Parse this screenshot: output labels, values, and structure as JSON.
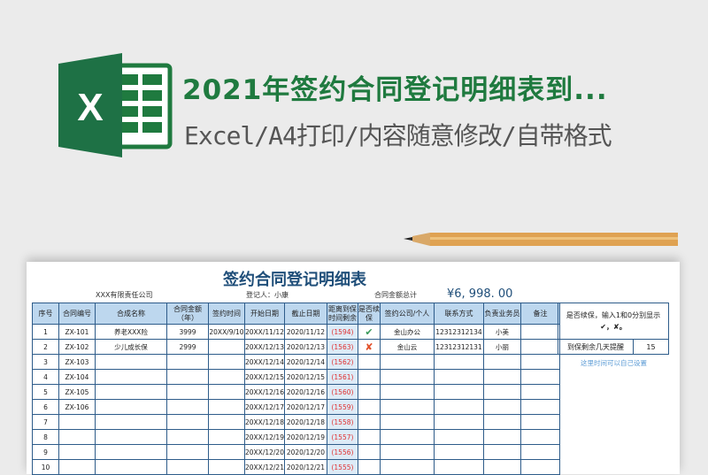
{
  "banner": {
    "title": "2021年签约合同登记明细表到...",
    "subtitle": "Excel/A4打印/内容随意修改/自带格式"
  },
  "sheet": {
    "title": "签约合同登记明细表",
    "company": "XXX有限责任公司",
    "registrar": "登记人：小康",
    "total_label": "合同金额总计",
    "total_value": "¥6, 998. 00",
    "headers": [
      "序号",
      "合同编号",
      "合成名称",
      "合同金额（年）",
      "签约时间",
      "开始日期",
      "截止日期",
      "距离到保时间剩余",
      "是否续保",
      "签约公司/个人",
      "联系方式",
      "负责业务员",
      "备注"
    ],
    "rows": [
      [
        "1",
        "ZX-101",
        "养老XXX险",
        "3999",
        "20XX/9/10",
        "20XX/11/12",
        "2020/11/12",
        "(1594)",
        "check",
        "金山办公",
        "12312312134",
        "小美",
        ""
      ],
      [
        "2",
        "ZX-102",
        "少儿成长保",
        "2999",
        "",
        "20XX/12/13",
        "2020/12/13",
        "(1563)",
        "cross",
        "金山云",
        "12312312131",
        "小丽",
        ""
      ],
      [
        "3",
        "ZX-103",
        "",
        "",
        "",
        "20XX/12/14",
        "2020/12/14",
        "(1562)",
        "",
        "",
        "",
        "",
        ""
      ],
      [
        "4",
        "ZX-104",
        "",
        "",
        "",
        "20XX/12/15",
        "2020/12/15",
        "(1561)",
        "",
        "",
        "",
        "",
        ""
      ],
      [
        "5",
        "ZX-105",
        "",
        "",
        "",
        "20XX/12/16",
        "2020/12/16",
        "(1560)",
        "",
        "",
        "",
        "",
        ""
      ],
      [
        "6",
        "ZX-106",
        "",
        "",
        "",
        "20XX/12/17",
        "2020/12/17",
        "(1559)",
        "",
        "",
        "",
        "",
        ""
      ],
      [
        "7",
        "",
        "",
        "",
        "",
        "20XX/12/18",
        "2020/12/18",
        "(1558)",
        "",
        "",
        "",
        "",
        ""
      ],
      [
        "8",
        "",
        "",
        "",
        "",
        "20XX/12/19",
        "2020/12/19",
        "(1557)",
        "",
        "",
        "",
        "",
        ""
      ],
      [
        "9",
        "",
        "",
        "",
        "",
        "20XX/12/20",
        "2020/12/20",
        "(1556)",
        "",
        "",
        "",
        "",
        ""
      ],
      [
        "10",
        "",
        "",
        "",
        "",
        "20XX/12/21",
        "2020/12/21",
        "(1555)",
        "",
        "",
        "",
        "",
        ""
      ]
    ],
    "side": {
      "instruction": "是否续保，输入1和0分别显示",
      "symbols": "✔，✘。",
      "remind_label": "到保剩余几天提醒",
      "remind_value": "15",
      "note": "这里时间可以自己设置"
    }
  },
  "colors": {
    "excel_green": "#1f7a3f",
    "header_fill": "#bdd7ee",
    "border": "#2e5c8a",
    "remaining_red": "#e03030"
  }
}
